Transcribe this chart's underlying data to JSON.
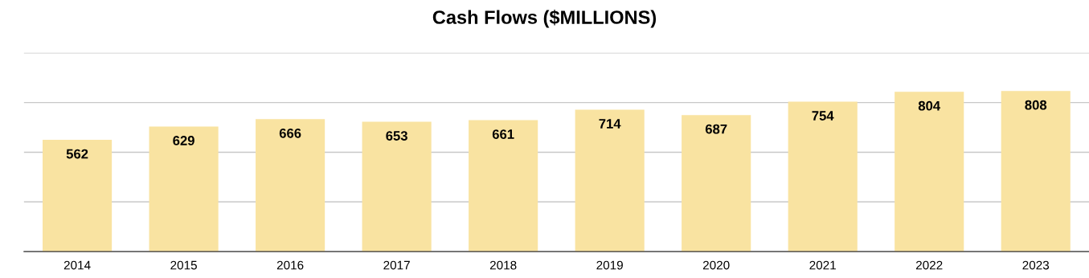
{
  "chart_data": {
    "type": "bar",
    "title": "Cash Flows ($MILLIONS)",
    "categories": [
      "2014",
      "2015",
      "2016",
      "2017",
      "2018",
      "2019",
      "2020",
      "2021",
      "2022",
      "2023"
    ],
    "values": [
      562,
      629,
      666,
      653,
      661,
      714,
      687,
      754,
      804,
      808
    ],
    "color": "#f9e3a1",
    "ylim": [
      0,
      1000
    ],
    "yticks": [
      {
        "value": 0,
        "label": null
      },
      {
        "value": 250,
        "label": null
      },
      {
        "value": 500,
        "label": null
      },
      {
        "value": 750,
        "label": null
      },
      {
        "value": 1000,
        "label": null
      }
    ],
    "grid": "y",
    "tick_labels": "x",
    "data_labels": true
  }
}
